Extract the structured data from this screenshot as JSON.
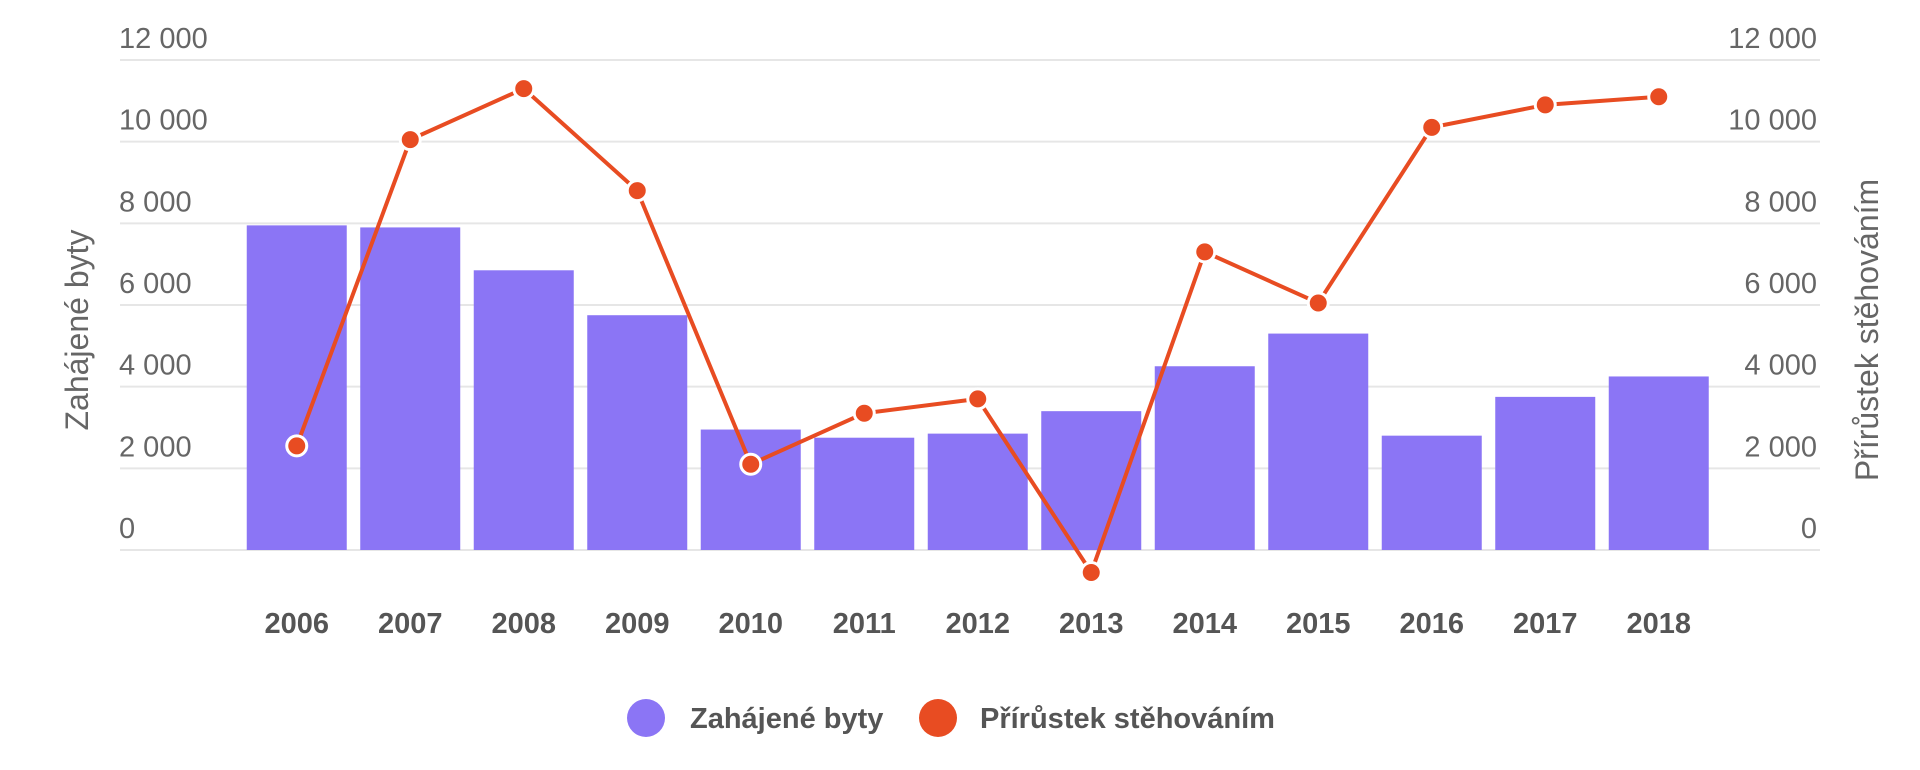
{
  "chart_data": {
    "type": "bar",
    "categories": [
      "2006",
      "2007",
      "2008",
      "2009",
      "2010",
      "2011",
      "2012",
      "2013",
      "2014",
      "2015",
      "2016",
      "2017",
      "2018"
    ],
    "series": [
      {
        "name": "Zahájené byty",
        "type": "bar",
        "axis": "left",
        "color": "#8B75F5",
        "values": [
          7950,
          7900,
          6850,
          5750,
          2950,
          2750,
          2850,
          3400,
          4500,
          5300,
          2800,
          3750,
          4250
        ]
      },
      {
        "name": "Přírůstek stěhováním",
        "type": "line",
        "axis": "right",
        "color": "#E84C22",
        "values": [
          2550,
          10050,
          11300,
          8800,
          2100,
          3350,
          3700,
          -550,
          7300,
          6050,
          10350,
          10900,
          11100
        ]
      }
    ],
    "y_left": {
      "label": "Zahájené byty",
      "range": [
        0,
        12000
      ],
      "ticks": [
        "12 000",
        "10 000",
        "8 000",
        "6 000",
        "4 000",
        "2 000",
        "0"
      ]
    },
    "y_right": {
      "label": "Přírůstek stěhováním",
      "range": [
        0,
        12000
      ],
      "ticks": [
        "12 000",
        "10 000",
        "8 000",
        "6 000",
        "4 000",
        "2 000",
        "0"
      ]
    },
    "grid": true,
    "legend_position": "bottom-center"
  }
}
